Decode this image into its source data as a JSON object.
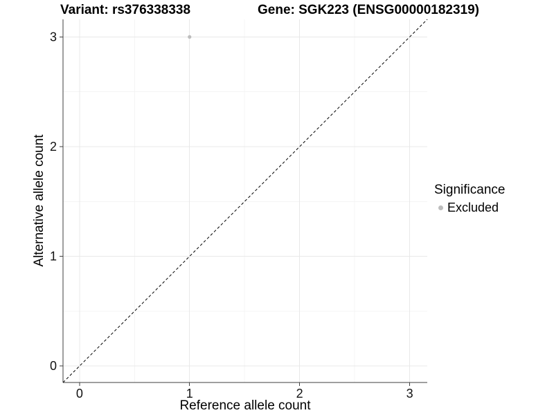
{
  "chart_data": {
    "type": "scatter",
    "title_left": "Variant: rs376338338",
    "title_right": "Gene: SGK223 (ENSG00000182319)",
    "xlabel": "Reference allele count",
    "ylabel": "Alternative allele count",
    "xlim": [
      -0.15,
      3.16
    ],
    "ylim": [
      -0.15,
      3.16
    ],
    "x_ticks": [
      0,
      1,
      2,
      3
    ],
    "y_ticks": [
      0,
      1,
      2,
      3
    ],
    "x_minor_ticks": [
      0.5,
      1.5,
      2.5
    ],
    "y_minor_ticks": [
      0.5,
      1.5,
      2.5
    ],
    "grid": true,
    "legend": {
      "position": "right",
      "title": "Significance",
      "items": [
        {
          "label": "Excluded",
          "color": "#bdbdbd"
        }
      ]
    },
    "series": [
      {
        "name": "Excluded",
        "color": "#bdbdbd",
        "points": [
          {
            "x": 1,
            "y": 3
          }
        ]
      }
    ],
    "reference_line": {
      "type": "identity",
      "line_style": "dashed",
      "color": "#000000"
    }
  },
  "style_colors": {
    "grid_major": "#e8e8e8",
    "grid_minor": "#f4f4f4",
    "axis_line": "#3f3f3f",
    "tick_text": "#111111"
  }
}
